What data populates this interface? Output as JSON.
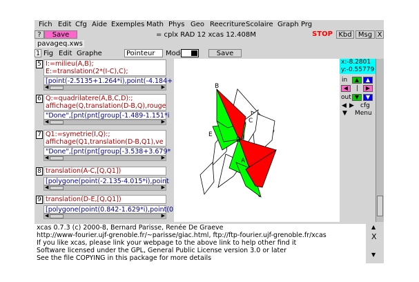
{
  "menubar": {
    "items": [
      "Fich",
      "Edit",
      "Cfg",
      "Aide",
      "Exemples",
      "Math",
      "Phys",
      "Geo",
      "Reecriture",
      "Scolaire",
      "Graph",
      "Prg"
    ]
  },
  "tabbar": {
    "help": "?",
    "save": "Save",
    "status": "= cplx RAD 12 xcas 12.408M",
    "stop": "STOP",
    "kbd": "Kbd",
    "msg": "Msg",
    "close": "X"
  },
  "file_tab": "pavageq.xws",
  "geo_toolbar": {
    "level": "1",
    "fig": "Fig",
    "edit": "Edit",
    "graphe": "Graphe",
    "mode_value": "Pointeur",
    "mode_label": "Mode",
    "save": "Save"
  },
  "levels": [
    {
      "num": "5",
      "cmd": "I:=milieu(A,B);\nE:=translation(2*(I-C),C);",
      "out": "[point(-2.5135+1.264*i),point(-4.184+"
    },
    {
      "num": "6",
      "cmd": "Q:=quadrilatere(A,B,C,D):;\naffichage(Q,translation(D-B,Q),rouge",
      "out": "\"Done\",[pnt(pnt[group[-1.489-1.151*i"
    },
    {
      "num": "7",
      "cmd": "Q1:=symetrie(I,Q):;\naffichage(Q1,translation(D-B,Q1),ve",
      "out": "\"Done\",[pnt(pnt[group[-3.538+3.679*"
    },
    {
      "num": "8",
      "cmd": "translation(A-C,[Q,Q1])",
      "out": "[polygone(point(-2.135-4.015*i),point"
    },
    {
      "num": "9",
      "cmd": "translation(D-E,[Q,Q1])",
      "out": "[polygone(point(0.842-1.629*i),point(0."
    }
  ],
  "coords": {
    "x": "x:-8.2801",
    "y": "y:-0.55779"
  },
  "side_panel": {
    "in": "in",
    "out": "out",
    "cfg": "cfg",
    "menu": "Menu",
    "pipe": "|"
  },
  "graph_points": [
    "B",
    "C",
    "E",
    "D",
    "A"
  ],
  "console": {
    "lines": [
      "xcas 0.7.3 (c) 2000-8, Bernard Parisse, Renée De Graeve",
      "http://www-fourier.ujf-grenoble.fr/~parisse/giac.html, ftp://ftp-fourier.ujf-grenoble.fr/xcas",
      "If you like xcas, please link your webpage to the above link to help other find it",
      "Software licensed under the GPL, General Public License version 3.0 or later",
      "See the file COPYING in this package for more details"
    ],
    "close": "X"
  },
  "colors": {
    "red": "#ff0000",
    "green": "#00ff00",
    "pink": "#ff66cc",
    "stop": "#ff0000",
    "cyan": "#00ffff"
  }
}
